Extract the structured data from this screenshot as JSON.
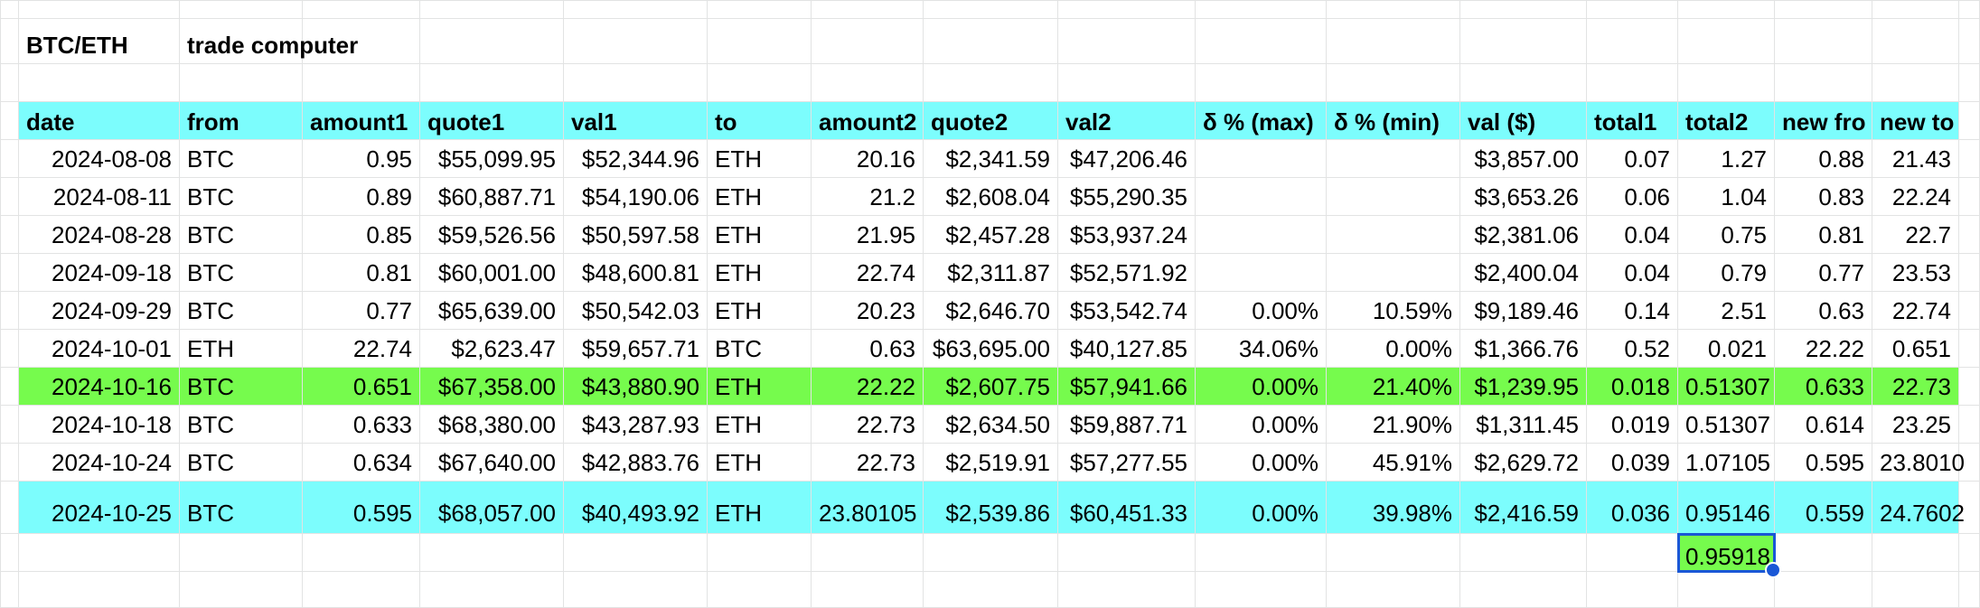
{
  "sheet": {
    "title_left": "BTC/ETH",
    "title_right": "trade computer",
    "headers": [
      "date",
      "from",
      "amount1",
      "quote1",
      "val1",
      "to",
      "amount2",
      "quote2",
      "val2",
      "δ % (max)",
      "δ % (min)",
      "val ($)",
      "total1",
      "total2",
      "new fro",
      "new to"
    ],
    "rows": [
      [
        "2024-08-08",
        "BTC",
        "0.95",
        "$55,099.95",
        "$52,344.96",
        "ETH",
        "20.16",
        "$2,341.59",
        "$47,206.46",
        "",
        "",
        "$3,857.00",
        "0.07",
        "1.27",
        "0.88",
        "21.43"
      ],
      [
        "2024-08-11",
        "BTC",
        "0.89",
        "$60,887.71",
        "$54,190.06",
        "ETH",
        "21.2",
        "$2,608.04",
        "$55,290.35",
        "",
        "",
        "$3,653.26",
        "0.06",
        "1.04",
        "0.83",
        "22.24"
      ],
      [
        "2024-08-28",
        "BTC",
        "0.85",
        "$59,526.56",
        "$50,597.58",
        "ETH",
        "21.95",
        "$2,457.28",
        "$53,937.24",
        "",
        "",
        "$2,381.06",
        "0.04",
        "0.75",
        "0.81",
        "22.7"
      ],
      [
        "2024-09-18",
        "BTC",
        "0.81",
        "$60,001.00",
        "$48,600.81",
        "ETH",
        "22.74",
        "$2,311.87",
        "$52,571.92",
        "",
        "",
        "$2,400.04",
        "0.04",
        "0.79",
        "0.77",
        "23.53"
      ],
      [
        "2024-09-29",
        "BTC",
        "0.77",
        "$65,639.00",
        "$50,542.03",
        "ETH",
        "20.23",
        "$2,646.70",
        "$53,542.74",
        "0.00%",
        "10.59%",
        "$9,189.46",
        "0.14",
        "2.51",
        "0.63",
        "22.74"
      ],
      [
        "2024-10-01",
        "ETH",
        "22.74",
        "$2,623.47",
        "$59,657.71",
        "BTC",
        "0.63",
        "$63,695.00",
        "$40,127.85",
        "34.06%",
        "0.00%",
        "$1,366.76",
        "0.52",
        "0.021",
        "22.22",
        "0.651"
      ],
      [
        "2024-10-16",
        "BTC",
        "0.651",
        "$67,358.00",
        "$43,880.90",
        "ETH",
        "22.22",
        "$2,607.75",
        "$57,941.66",
        "0.00%",
        "21.40%",
        "$1,239.95",
        "0.018",
        "0.51307",
        "0.633",
        "22.73"
      ],
      [
        "2024-10-18",
        "BTC",
        "0.633",
        "$68,380.00",
        "$43,287.93",
        "ETH",
        "22.73",
        "$2,634.50",
        "$59,887.71",
        "0.00%",
        "21.90%",
        "$1,311.45",
        "0.019",
        "0.51307",
        "0.614",
        "23.25"
      ],
      [
        "2024-10-24",
        "BTC",
        "0.634",
        "$67,640.00",
        "$42,883.76",
        "ETH",
        "22.73",
        "$2,519.91",
        "$57,277.55",
        "0.00%",
        "45.91%",
        "$2,629.72",
        "0.039",
        "1.07105",
        "0.595",
        "23.8010"
      ],
      [
        "2024-10-25",
        "BTC",
        "0.595",
        "$68,057.00",
        "$40,493.92",
        "ETH",
        "23.80105",
        "$2,539.86",
        "$60,451.33",
        "0.00%",
        "39.98%",
        "$2,416.59",
        "0.036",
        "0.95146",
        "0.559",
        "24.7602"
      ]
    ],
    "selected_cell_value": "0.95918",
    "highlight_colors": {
      "header_row": "#7cfdfd",
      "last_row": "#7cfdfd",
      "highlighted_row": "#76fb4d",
      "selected_cell": "#76fb4d",
      "selection_border": "#1a57d6"
    }
  }
}
